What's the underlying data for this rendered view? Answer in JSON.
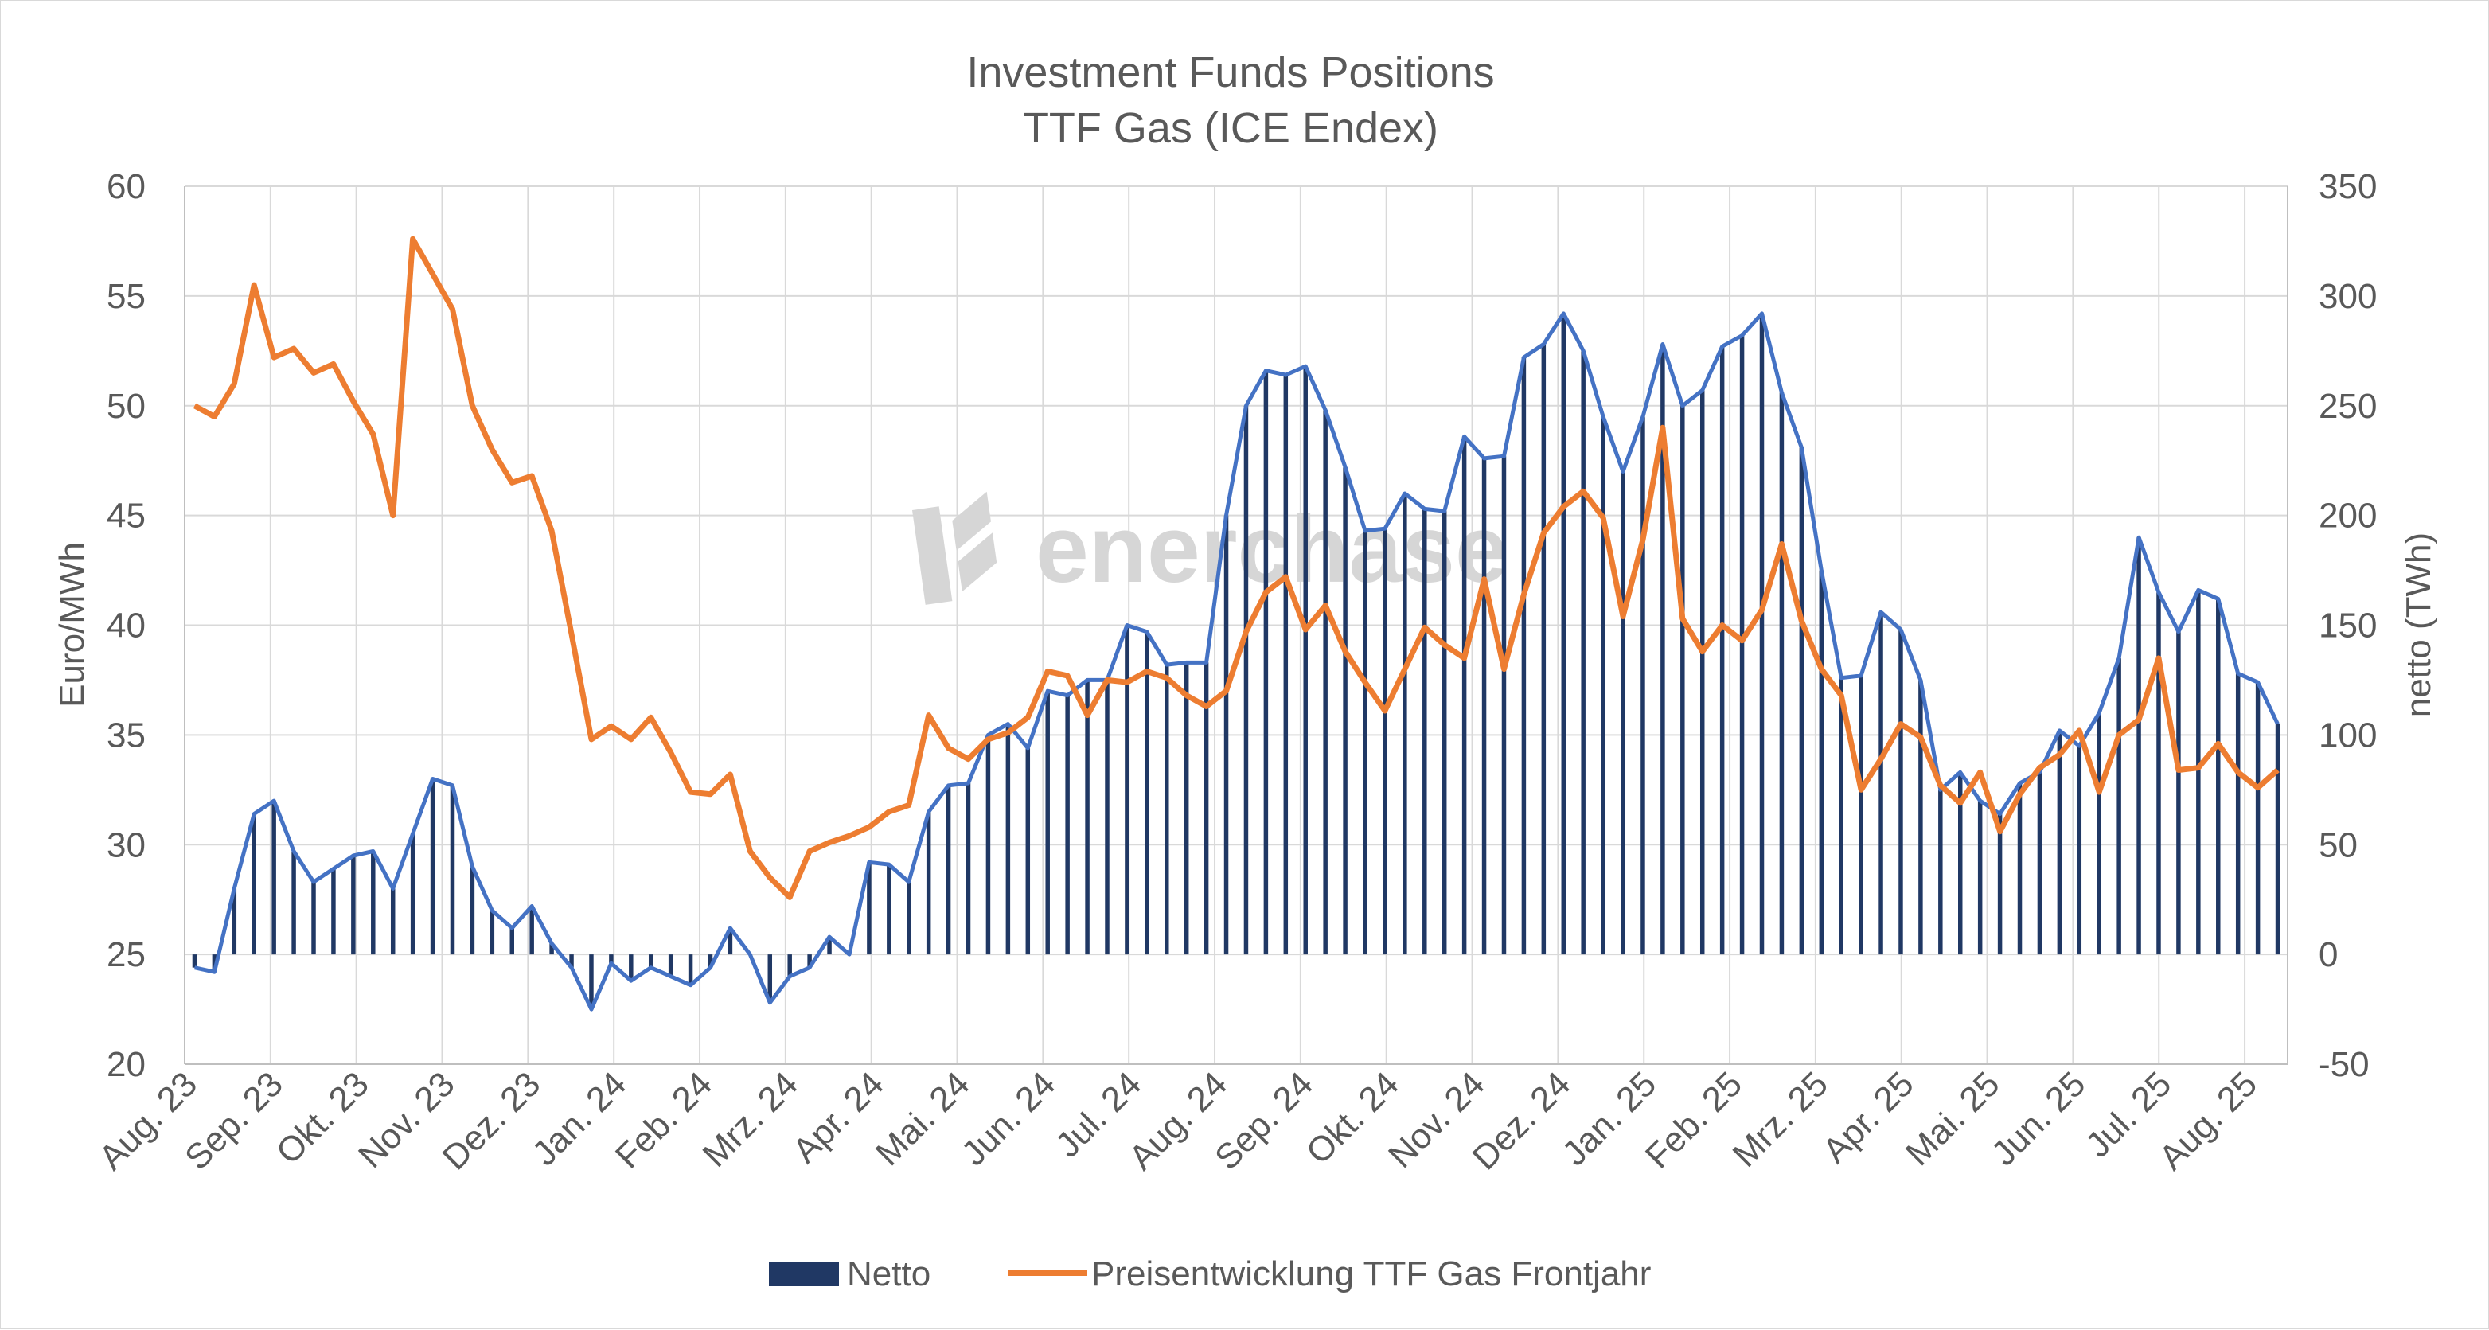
{
  "chart_data": {
    "type": "bar+line",
    "title": [
      "Investment Funds Positions",
      "TTF Gas (ICE Endex)"
    ],
    "watermark": "enerchase",
    "ylabel_left": "Euro/MWh",
    "ylabel_right": "netto (TWh)",
    "ylim_left": [
      20,
      60
    ],
    "ylim_right": [
      -50,
      350
    ],
    "yticks_left": [
      "20",
      "25",
      "30",
      "35",
      "40",
      "45",
      "50",
      "55",
      "60"
    ],
    "yticks_right": [
      "-50",
      "0",
      "50",
      "100",
      "150",
      "200",
      "250",
      "300",
      "350"
    ],
    "x_labels": [
      "Aug. 23",
      "Sep. 23",
      "Okt. 23",
      "Nov. 23",
      "Dez. 23",
      "Jan. 24",
      "Feb. 24",
      "Mrz. 24",
      "Apr. 24",
      "Mai. 24",
      "Jun. 24",
      "Jul. 24",
      "Aug. 24",
      "Sep. 24",
      "Okt. 24",
      "Nov. 24",
      "Dez. 24",
      "Jan. 25",
      "Feb. 25",
      "Mrz. 25",
      "Apr. 25",
      "Mai. 25",
      "Jun. 25",
      "Jul. 25",
      "Aug. 25"
    ],
    "colors": {
      "netto_bar": "#203864",
      "netto_line": "#4472c4",
      "price_line": "#ed7d31",
      "grid": "#d9d9d9",
      "axis": "#bfbfbf"
    },
    "series": [
      {
        "name": "Netto",
        "axis": "right",
        "type": "bar",
        "values": [
          -6,
          -8,
          30,
          64,
          70,
          47,
          33,
          39,
          45,
          47,
          30,
          55,
          80,
          77,
          40,
          20,
          12,
          22,
          5,
          -6,
          -25,
          -4,
          -12,
          -6,
          -10,
          -14,
          -6,
          12,
          0,
          -22,
          -10,
          -6,
          8,
          0,
          42,
          41,
          33,
          65,
          77,
          78,
          100,
          105,
          94,
          120,
          118,
          125,
          125,
          150,
          147,
          132,
          133,
          133,
          200,
          250,
          266,
          264,
          268,
          248,
          222,
          193,
          194,
          210,
          203,
          202,
          236,
          226,
          227,
          272,
          278,
          292,
          275,
          245,
          220,
          245,
          278,
          250,
          257,
          277,
          282,
          292,
          256,
          231,
          175,
          126,
          127,
          156,
          148,
          125,
          75,
          83,
          70,
          64,
          78,
          83,
          102,
          95,
          110,
          135,
          190,
          165,
          147,
          166,
          162,
          128,
          124,
          105
        ]
      },
      {
        "name": "Preisentwicklung TTF Gas Frontjahr",
        "axis": "left",
        "type": "line",
        "values": [
          50.0,
          49.5,
          51.0,
          55.5,
          52.2,
          52.6,
          51.5,
          51.9,
          50.2,
          48.7,
          45.0,
          57.6,
          56.0,
          54.4,
          50.0,
          48.0,
          46.5,
          46.8,
          44.3,
          39.6,
          34.8,
          35.4,
          34.8,
          35.8,
          34.2,
          32.4,
          32.3,
          33.2,
          29.7,
          28.5,
          27.6,
          29.7,
          30.1,
          30.4,
          30.8,
          31.5,
          31.8,
          35.9,
          34.4,
          33.9,
          34.8,
          35.1,
          35.8,
          37.9,
          37.7,
          35.9,
          37.5,
          37.4,
          37.9,
          37.6,
          36.8,
          36.3,
          37.0,
          39.7,
          41.5,
          42.2,
          39.8,
          40.9,
          38.8,
          37.4,
          36.1,
          38.0,
          39.9,
          39.1,
          38.5,
          42.1,
          38.0,
          41.4,
          44.2,
          45.4,
          46.1,
          44.9,
          40.4,
          43.9,
          49.0,
          40.3,
          38.8,
          40.0,
          39.3,
          40.7,
          43.7,
          40.2,
          38.0,
          36.8,
          32.5,
          33.9,
          35.5,
          34.9,
          32.7,
          31.9,
          33.3,
          30.6,
          32.3,
          33.5,
          34.1,
          35.2,
          32.4,
          35.0,
          35.7,
          38.5,
          33.4,
          33.5,
          34.6,
          33.3,
          32.6,
          33.4
        ]
      }
    ]
  }
}
